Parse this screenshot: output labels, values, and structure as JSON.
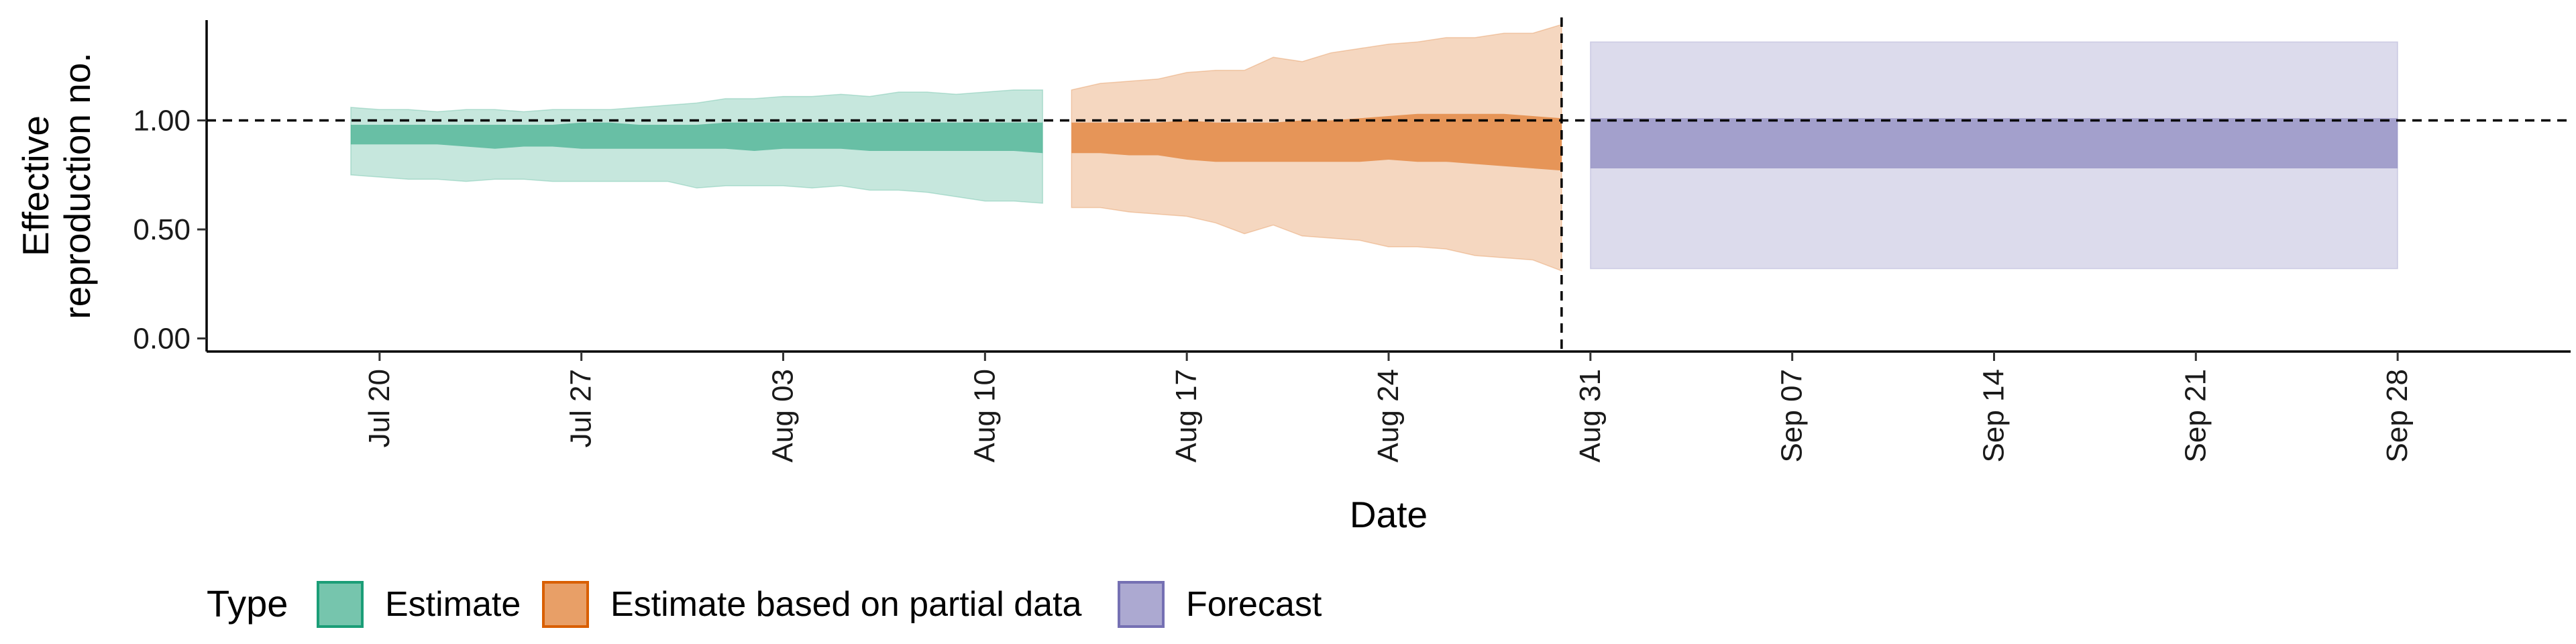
{
  "chart_data": {
    "type": "area",
    "xlabel": "Date",
    "ylabel": [
      "Effective",
      "reproduction no."
    ],
    "x_range": [
      "2021-07-14",
      "2021-10-04"
    ],
    "ylim": [
      -0.06,
      1.46
    ],
    "y_ticks": [
      {
        "value": 0,
        "label": "0.00"
      },
      {
        "value": 0.5,
        "label": "0.50"
      },
      {
        "value": 1,
        "label": "1.00"
      }
    ],
    "x_ticks": [
      {
        "date": "2021-07-20",
        "label": "Jul 20"
      },
      {
        "date": "2021-07-27",
        "label": "Jul 27"
      },
      {
        "date": "2021-08-03",
        "label": "Aug 03"
      },
      {
        "date": "2021-08-10",
        "label": "Aug 10"
      },
      {
        "date": "2021-08-17",
        "label": "Aug 17"
      },
      {
        "date": "2021-08-24",
        "label": "Aug 24"
      },
      {
        "date": "2021-08-31",
        "label": "Aug 31"
      },
      {
        "date": "2021-09-07",
        "label": "Sep 07"
      },
      {
        "date": "2021-09-14",
        "label": "Sep 14"
      },
      {
        "date": "2021-09-21",
        "label": "Sep 21"
      },
      {
        "date": "2021-09-28",
        "label": "Sep 28"
      }
    ],
    "reference_line": {
      "y": 1.0,
      "style": "dashed"
    },
    "forecast_start_line": {
      "date": "2021-08-30",
      "style": "dashed"
    },
    "grid": false,
    "legend": {
      "title": "Type",
      "position": "bottom-left"
    },
    "series": [
      {
        "name": "Estimate",
        "color": "#1b9e77",
        "dates": [
          "2021-07-19",
          "2021-07-20",
          "2021-07-21",
          "2021-07-22",
          "2021-07-23",
          "2021-07-24",
          "2021-07-25",
          "2021-07-26",
          "2021-07-27",
          "2021-07-28",
          "2021-07-29",
          "2021-07-30",
          "2021-07-31",
          "2021-08-01",
          "2021-08-02",
          "2021-08-03",
          "2021-08-04",
          "2021-08-05",
          "2021-08-06",
          "2021-08-07",
          "2021-08-08",
          "2021-08-09",
          "2021-08-10",
          "2021-08-11",
          "2021-08-12"
        ],
        "lower_90": [
          0.75,
          0.74,
          0.73,
          0.73,
          0.72,
          0.73,
          0.73,
          0.72,
          0.72,
          0.72,
          0.72,
          0.72,
          0.69,
          0.7,
          0.7,
          0.7,
          0.69,
          0.7,
          0.68,
          0.68,
          0.67,
          0.65,
          0.63,
          0.63,
          0.62
        ],
        "upper_90": [
          1.06,
          1.05,
          1.05,
          1.04,
          1.05,
          1.05,
          1.04,
          1.05,
          1.05,
          1.05,
          1.06,
          1.07,
          1.08,
          1.1,
          1.1,
          1.11,
          1.11,
          1.12,
          1.11,
          1.13,
          1.13,
          1.12,
          1.13,
          1.14,
          1.14
        ],
        "lower_50": [
          0.89,
          0.89,
          0.89,
          0.89,
          0.88,
          0.87,
          0.88,
          0.88,
          0.87,
          0.87,
          0.87,
          0.87,
          0.87,
          0.87,
          0.86,
          0.87,
          0.87,
          0.87,
          0.86,
          0.86,
          0.86,
          0.86,
          0.86,
          0.86,
          0.85
        ],
        "upper_50": [
          0.98,
          0.98,
          0.98,
          0.98,
          0.98,
          0.98,
          0.98,
          0.98,
          0.99,
          0.99,
          0.98,
          0.98,
          0.98,
          0.99,
          0.99,
          0.99,
          0.99,
          0.99,
          0.99,
          0.99,
          0.99,
          0.99,
          0.99,
          0.99,
          0.99
        ]
      },
      {
        "name": "Estimate based on partial data",
        "color": "#d95f02",
        "dates": [
          "2021-08-13",
          "2021-08-14",
          "2021-08-15",
          "2021-08-16",
          "2021-08-17",
          "2021-08-18",
          "2021-08-19",
          "2021-08-20",
          "2021-08-21",
          "2021-08-22",
          "2021-08-23",
          "2021-08-24",
          "2021-08-25",
          "2021-08-26",
          "2021-08-27",
          "2021-08-28",
          "2021-08-29",
          "2021-08-30"
        ],
        "lower_90": [
          0.6,
          0.6,
          0.58,
          0.57,
          0.56,
          0.53,
          0.48,
          0.52,
          0.47,
          0.46,
          0.45,
          0.42,
          0.42,
          0.41,
          0.38,
          0.37,
          0.36,
          0.31
        ],
        "upper_90": [
          1.14,
          1.17,
          1.18,
          1.19,
          1.22,
          1.23,
          1.23,
          1.29,
          1.27,
          1.31,
          1.33,
          1.35,
          1.36,
          1.38,
          1.38,
          1.4,
          1.4,
          1.44
        ],
        "lower_50": [
          0.85,
          0.85,
          0.84,
          0.84,
          0.82,
          0.81,
          0.81,
          0.81,
          0.81,
          0.81,
          0.81,
          0.82,
          0.81,
          0.81,
          0.8,
          0.79,
          0.78,
          0.77
        ],
        "upper_50": [
          0.99,
          0.99,
          0.99,
          0.99,
          1.0,
          0.99,
          0.99,
          0.99,
          1.0,
          1.0,
          1.01,
          1.02,
          1.03,
          1.03,
          1.03,
          1.03,
          1.02,
          1.01
        ]
      },
      {
        "name": "Forecast",
        "color": "#7570b3",
        "dates": [
          "2021-08-31",
          "2021-09-28"
        ],
        "lower_90": [
          0.32,
          0.32
        ],
        "upper_90": [
          1.36,
          1.36
        ],
        "lower_50": [
          0.78,
          0.78
        ],
        "upper_50": [
          1.01,
          1.01
        ]
      }
    ]
  }
}
